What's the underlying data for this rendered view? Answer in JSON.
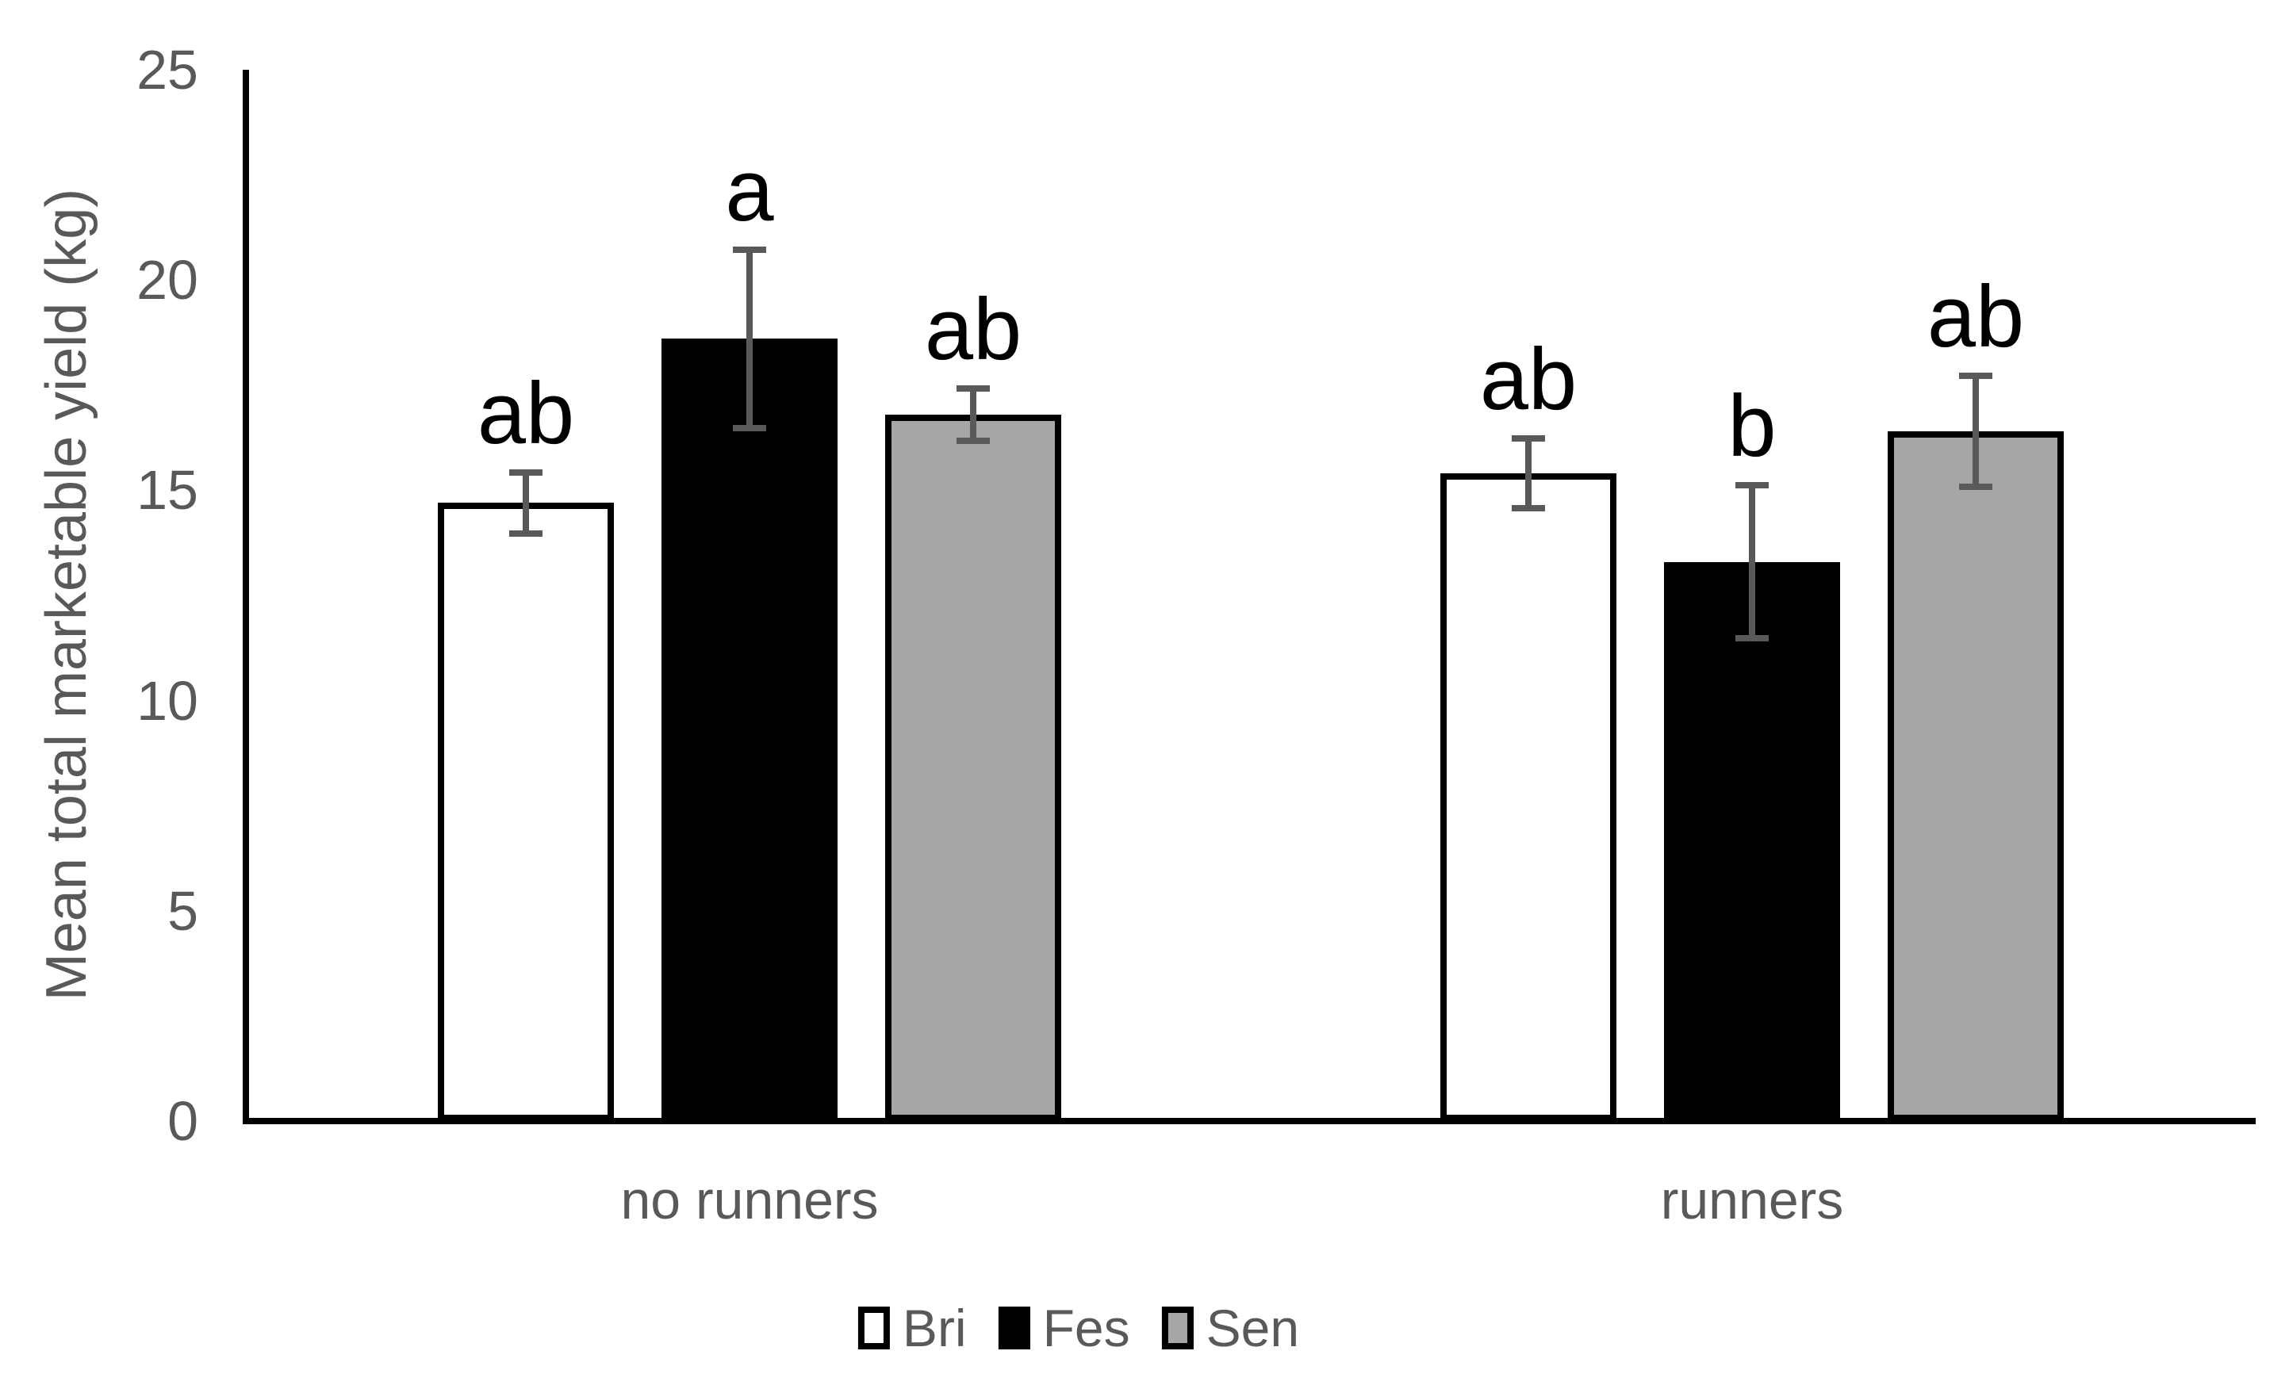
{
  "chart_data": {
    "type": "bar",
    "title": "",
    "xlabel": "",
    "ylabel": "Mean total marketable yield (kg)",
    "ylim": [
      0,
      25
    ],
    "yticks": [
      0,
      5,
      10,
      15,
      20,
      25
    ],
    "grid": false,
    "legend_position": "bottom",
    "categories": [
      "no runners",
      "runners"
    ],
    "series": [
      {
        "name": "Bri",
        "fill": "#ffffff",
        "values": [
          14.7,
          15.4
        ],
        "errors": [
          0.8,
          0.9
        ],
        "significance_letters": [
          "ab",
          "ab"
        ]
      },
      {
        "name": "Fes",
        "fill": "#000000",
        "values": [
          18.6,
          13.3
        ],
        "errors": [
          2.2,
          1.9
        ],
        "significance_letters": [
          "a",
          "b"
        ]
      },
      {
        "name": "Sen",
        "fill": "#a6a6a6",
        "values": [
          16.8,
          16.4
        ],
        "errors": [
          0.7,
          1.4
        ],
        "significance_letters": [
          "ab",
          "ab"
        ]
      }
    ]
  },
  "colors": {
    "axis": "#000000",
    "bar_outline": "#000000",
    "error_bar": "#595959",
    "text": "#595959",
    "letters": "#000000",
    "background": "#ffffff"
  }
}
